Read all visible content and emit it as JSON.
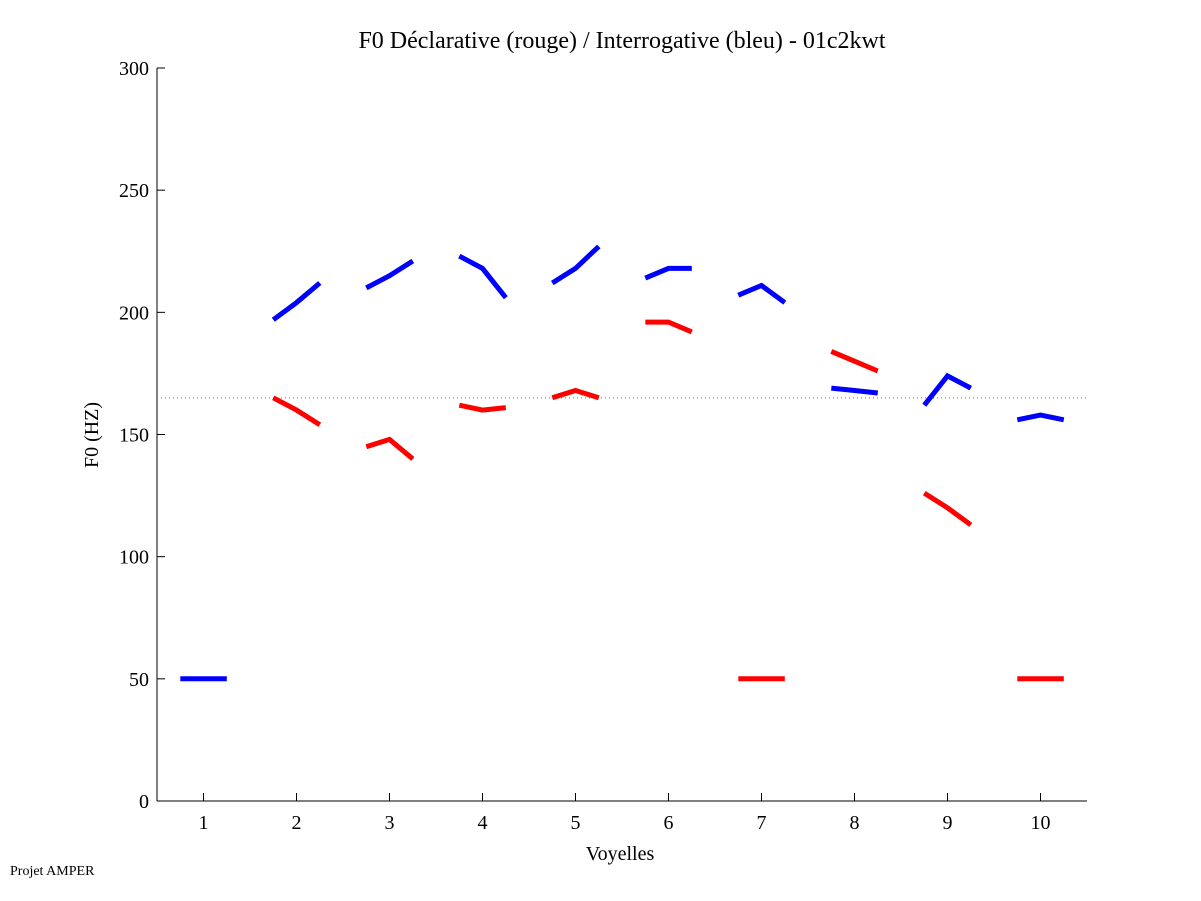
{
  "chart_data": {
    "type": "line",
    "title": "F0 Déclarative (rouge) / Interrogative (bleu) - 01c2kwt",
    "xlabel": "Voyelles",
    "ylabel": "F0 (HZ)",
    "xlim": [
      0.5,
      10.5
    ],
    "ylim": [
      0,
      300
    ],
    "xticks": [
      1,
      2,
      3,
      4,
      5,
      6,
      7,
      8,
      9,
      10
    ],
    "yticks": [
      0,
      50,
      100,
      150,
      200,
      250,
      300
    ],
    "grid": false,
    "reference_line": {
      "y": 165,
      "color": "#00c000",
      "style": "dotted"
    },
    "series": [
      {
        "color": "#0000ff",
        "segments": [
          {
            "x": 1,
            "values": [
              50,
              50,
              50
            ]
          },
          {
            "x": 2,
            "values": [
              197,
              204,
              212
            ]
          },
          {
            "x": 3,
            "values": [
              210,
              215,
              221
            ]
          },
          {
            "x": 4,
            "values": [
              223,
              218,
              206
            ]
          },
          {
            "x": 5,
            "values": [
              212,
              218,
              227
            ]
          },
          {
            "x": 6,
            "values": [
              214,
              218,
              218
            ]
          },
          {
            "x": 7,
            "values": [
              207,
              211,
              204
            ]
          },
          {
            "x": 8,
            "values": [
              169,
              168,
              167
            ]
          },
          {
            "x": 9,
            "values": [
              162,
              174,
              169
            ]
          },
          {
            "x": 10,
            "values": [
              156,
              158,
              156
            ]
          }
        ]
      },
      {
        "color": "#ff0000",
        "segments": [
          {
            "x": 2,
            "values": [
              165,
              160,
              154
            ]
          },
          {
            "x": 3,
            "values": [
              145,
              148,
              140
            ]
          },
          {
            "x": 4,
            "values": [
              162,
              160,
              161
            ]
          },
          {
            "x": 5,
            "values": [
              165,
              168,
              165
            ]
          },
          {
            "x": 6,
            "values": [
              196,
              196,
              192
            ]
          },
          {
            "x": 7,
            "values": [
              50,
              50,
              50
            ]
          },
          {
            "x": 8,
            "values": [
              184,
              180,
              176
            ]
          },
          {
            "x": 9,
            "values": [
              126,
              120,
              113
            ]
          },
          {
            "x": 10,
            "values": [
              50,
              50,
              50
            ]
          }
        ]
      }
    ]
  },
  "footer": "Projet AMPER"
}
